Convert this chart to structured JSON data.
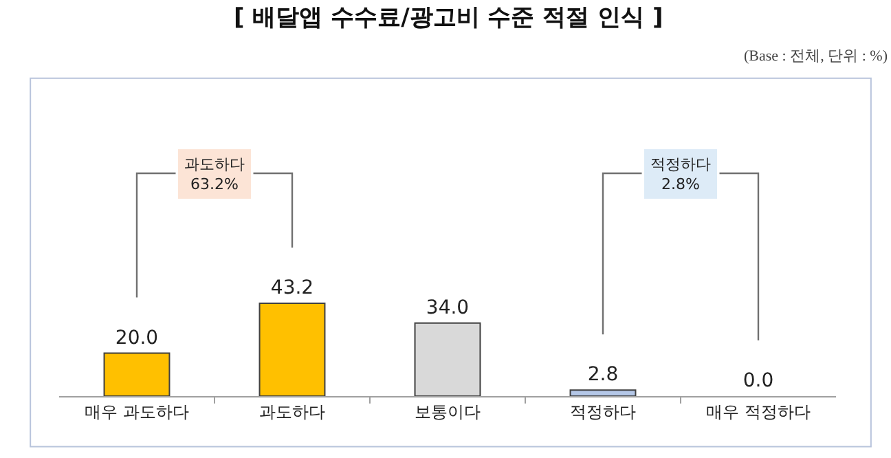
{
  "chart_data": {
    "type": "bar",
    "title": "[ 배달앱 수수료/광고비 수준 적절 인식 ]",
    "subtitle": "(Base : 전체, 단위 : %)",
    "categories": [
      "매우 과도하다",
      "과도하다",
      "보통이다",
      "적정하다",
      "매우 적정하다"
    ],
    "values": [
      20.0,
      43.2,
      34.0,
      2.8,
      0.0
    ],
    "colors": [
      "#ffc000",
      "#ffc000",
      "#d9d9d9",
      "#b4c7e7",
      "#b4c7e7"
    ],
    "value_labels": [
      "20.0",
      "43.2",
      "34.0",
      "2.8",
      "0.0"
    ],
    "annotations": [
      "과도하다\n63.2%",
      "적정하다\n2.8%"
    ]
  }
}
